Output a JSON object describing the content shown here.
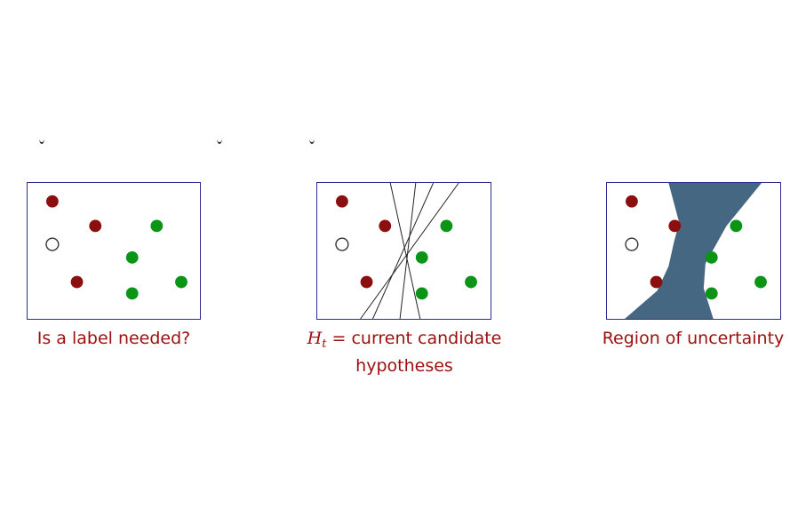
{
  "colors": {
    "negative": "#8c0f0f",
    "positive": "#0b9416",
    "unlabeled_fill": "#ffffff",
    "unlabeled_stroke": "#333333",
    "frame": "#2b2f8f",
    "region": "#456781",
    "line": "#222222",
    "caption": "#9b0f0f"
  },
  "panels": [
    {
      "caption": "Is a label needed?"
    },
    {
      "caption_math_symbol": "H",
      "caption_math_sub": "t",
      "caption_rest": " = current candidate",
      "caption_line2": "hypotheses"
    },
    {
      "caption": "Region of uncertainty"
    }
  ]
}
